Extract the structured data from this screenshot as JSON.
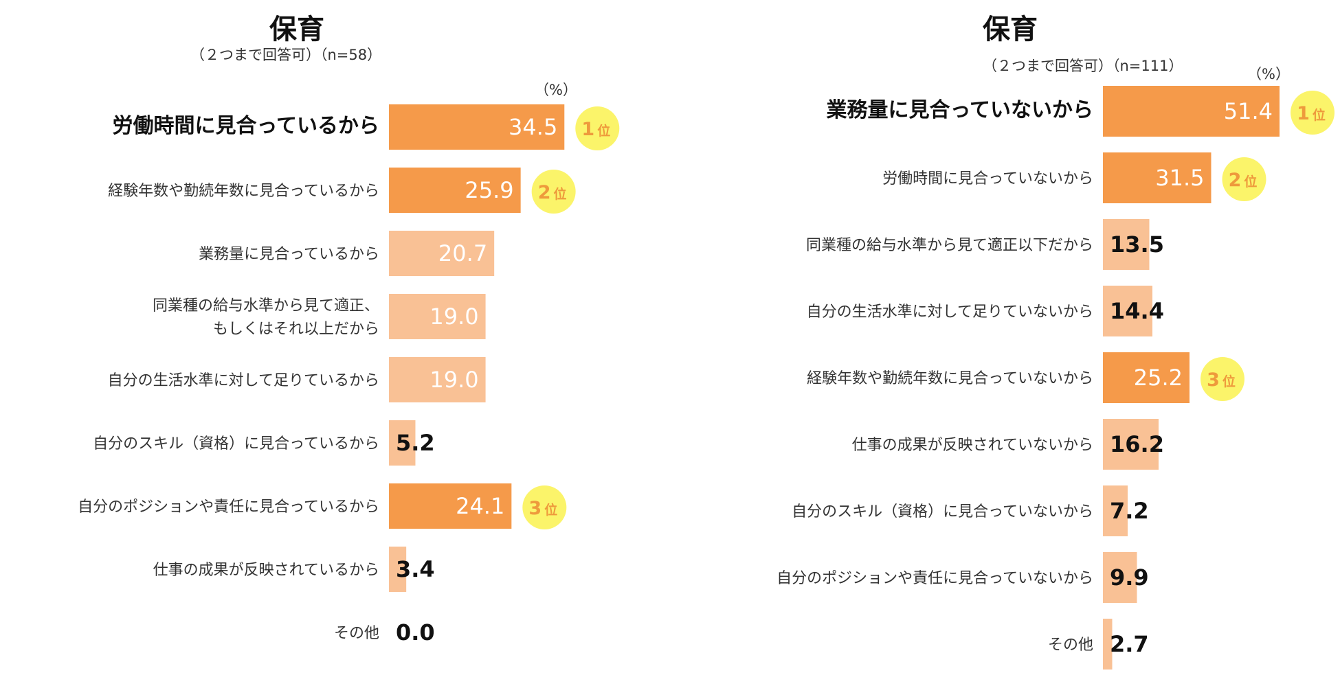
{
  "chart_data": [
    {
      "type": "bar",
      "orientation": "horizontal",
      "title": "保育",
      "subtitle": "（２つまで回答可）（n=58）",
      "unit": "（%）",
      "categories": [
        [
          "労働時間に見合っているから"
        ],
        [
          "経験年数や勤続年数に見合っているから"
        ],
        [
          "業務量に見合っているから"
        ],
        [
          "同業種の給与水準から見て適正、",
          "もしくはそれ以上だから"
        ],
        [
          "自分の生活水準に対して足りているから"
        ],
        [
          "自分のスキル（資格）に見合っているから"
        ],
        [
          "自分のポジションや責任に見合っているから"
        ],
        [
          "仕事の成果が反映されているから"
        ],
        [
          "その他"
        ]
      ],
      "values": [
        34.5,
        25.9,
        20.7,
        19.0,
        19.0,
        5.2,
        24.1,
        3.4,
        0.0
      ],
      "value_labels": [
        "34.5",
        "25.9",
        "20.7",
        "19.0",
        "19.0",
        "5.2",
        "24.1",
        "3.4",
        "0.0"
      ],
      "ranks": [
        "1",
        "2",
        "",
        "",
        "",
        "",
        "3",
        "",
        ""
      ],
      "rank_suffix": "位",
      "xlim": [
        0,
        35
      ]
    },
    {
      "type": "bar",
      "orientation": "horizontal",
      "title": "保育",
      "subtitle": "（２つまで回答可）（n=111）",
      "unit": "（%）",
      "categories": [
        [
          "業務量に見合っていないから"
        ],
        [
          "労働時間に見合っていないから"
        ],
        [
          "同業種の給与水準から見て適正以下だから"
        ],
        [
          "自分の生活水準に対して足りていないから"
        ],
        [
          "経験年数や勤続年数に見合っていないから"
        ],
        [
          "仕事の成果が反映されていないから"
        ],
        [
          "自分のスキル（資格）に見合っていないから"
        ],
        [
          "自分のポジションや責任に見合っていないから"
        ],
        [
          "その他"
        ]
      ],
      "values": [
        51.4,
        31.5,
        13.5,
        14.4,
        25.2,
        16.2,
        7.2,
        9.9,
        2.7
      ],
      "value_labels": [
        "51.4",
        "31.5",
        "13.5",
        "14.4",
        "25.2",
        "16.2",
        "7.2",
        "9.9",
        "2.7"
      ],
      "ranks": [
        "1",
        "2",
        "",
        "",
        "3",
        "",
        "",
        "",
        ""
      ],
      "rank_suffix": "位",
      "xlim": [
        0,
        51.4
      ]
    }
  ],
  "colors": {
    "top_bar": "#f59a4a",
    "other_bar": "#f9c195",
    "rank_circle": "#fbf46a",
    "rank_text": "#ee9a3c",
    "value_inside": "#ffffff",
    "value_outside": "#111111"
  }
}
